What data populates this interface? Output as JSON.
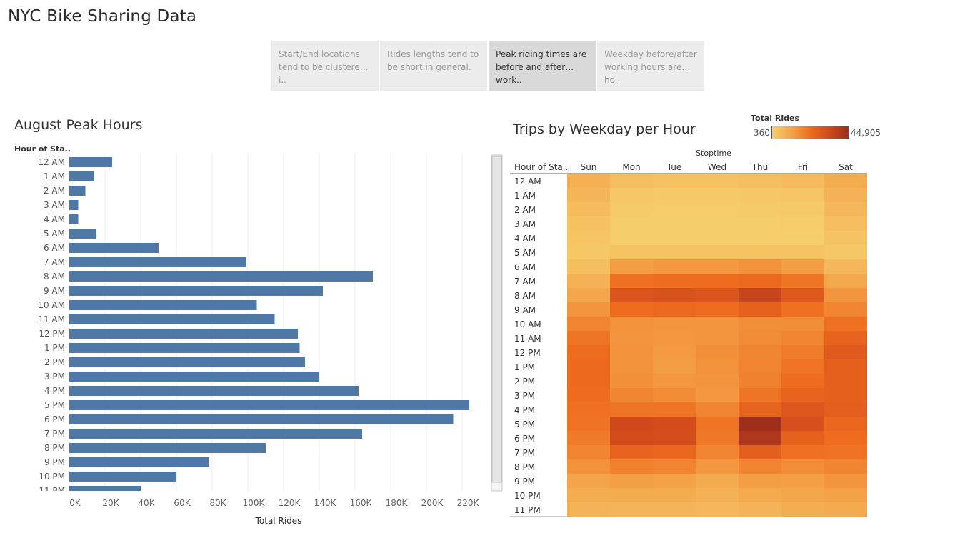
{
  "page": {
    "title": "NYC Bike Sharing Data"
  },
  "story_points": [
    {
      "label": "Start/End locations tend to be clustered i..",
      "active": false
    },
    {
      "label": "Rides lengths tend to be short in general.",
      "active": false
    },
    {
      "label": "Peak riding times are before and after work..",
      "active": true
    },
    {
      "label": "Weekday before/after working hours are ho..",
      "active": false
    }
  ],
  "colors": {
    "bar": "#4e79a7",
    "heat_scale": [
      "#f5cf6c",
      "#f4a44a",
      "#ee6d1e",
      "#d04a1c",
      "#9e2f1d"
    ]
  },
  "bar_sheet": {
    "title": "August Peak Hours",
    "row_header": "Hour of Sta.."
  },
  "heat_sheet": {
    "title": "Trips by Weekday per Hour",
    "column_header": "Stoptime",
    "row_header": "Hour of Sta.."
  },
  "legend": {
    "title": "Total Rides",
    "min_label": "360",
    "max_label": "44,905"
  },
  "chart_data": [
    {
      "type": "bar",
      "orientation": "horizontal",
      "title": "August Peak Hours",
      "xlabel": "Total Rides",
      "ylabel": "Hour of Sta..",
      "xlim": [
        0,
        230000
      ],
      "x_ticks": [
        "0K",
        "20K",
        "40K",
        "60K",
        "80K",
        "100K",
        "120K",
        "140K",
        "160K",
        "180K",
        "200K",
        "220K"
      ],
      "grid": true,
      "categories": [
        "12 AM",
        "1 AM",
        "2 AM",
        "3 AM",
        "4 AM",
        "5 AM",
        "6 AM",
        "7 AM",
        "8 AM",
        "9 AM",
        "10 AM",
        "11 AM",
        "12 PM",
        "1 PM",
        "2 PM",
        "3 PM",
        "4 PM",
        "5 PM",
        "6 PM",
        "7 PM",
        "8 PM",
        "9 PM",
        "10 PM",
        "11 PM"
      ],
      "values": [
        24000,
        14000,
        9000,
        5000,
        5000,
        15000,
        50000,
        99000,
        170000,
        142000,
        105000,
        115000,
        128000,
        129000,
        132000,
        140000,
        162000,
        224000,
        215000,
        164000,
        110000,
        78000,
        60000,
        40000
      ]
    },
    {
      "type": "heatmap",
      "title": "Trips by Weekday per Hour",
      "xlabel": "Stoptime",
      "ylabel": "Hour of Sta..",
      "color_label": "Total Rides",
      "color_range": [
        360,
        44905
      ],
      "columns": [
        "Sun",
        "Mon",
        "Tue",
        "Wed",
        "Thu",
        "Fri",
        "Sat"
      ],
      "rows": [
        "12 AM",
        "1 AM",
        "2 AM",
        "3 AM",
        "4 AM",
        "5 AM",
        "6 AM",
        "7 AM",
        "8 AM",
        "9 AM",
        "10 AM",
        "11 AM",
        "12 PM",
        "1 PM",
        "2 PM",
        "3 PM",
        "4 PM",
        "5 PM",
        "6 PM",
        "7 PM",
        "8 PM",
        "9 PM",
        "10 PM",
        "11 PM"
      ],
      "values": [
        [
          8500,
          4500,
          4000,
          4000,
          4500,
          5500,
          9500
        ],
        [
          7000,
          2500,
          2000,
          2000,
          2500,
          3000,
          8000
        ],
        [
          5500,
          1500,
          1200,
          1200,
          1500,
          2000,
          6500
        ],
        [
          4000,
          900,
          700,
          700,
          900,
          1200,
          5000
        ],
        [
          3000,
          700,
          600,
          600,
          700,
          900,
          3500
        ],
        [
          2500,
          3500,
          3500,
          3500,
          3500,
          3500,
          2500
        ],
        [
          4500,
          13000,
          14000,
          14000,
          15000,
          13000,
          6500
        ],
        [
          8000,
          22000,
          23000,
          23000,
          24000,
          21000,
          10500
        ],
        [
          11000,
          30000,
          31000,
          30000,
          36000,
          29000,
          14500
        ],
        [
          14500,
          23000,
          24000,
          23000,
          26000,
          22000,
          18000
        ],
        [
          18000,
          15000,
          14500,
          14500,
          16000,
          16000,
          22000
        ],
        [
          21000,
          14500,
          14000,
          14500,
          16500,
          17500,
          25500
        ],
        [
          23000,
          15000,
          13500,
          15500,
          17500,
          19500,
          28500
        ],
        [
          23500,
          15000,
          13000,
          15000,
          18000,
          21000,
          26500
        ],
        [
          23500,
          15500,
          14000,
          14500,
          18500,
          23000,
          26500
        ],
        [
          23000,
          17500,
          16500,
          14000,
          21000,
          25500,
          26500
        ],
        [
          22000,
          21000,
          21000,
          17500,
          25500,
          29500,
          27000
        ],
        [
          21500,
          34000,
          33000,
          21000,
          44905,
          32000,
          24500
        ],
        [
          20000,
          33000,
          32500,
          20500,
          41000,
          26000,
          23000
        ],
        [
          18000,
          25500,
          24500,
          18000,
          27000,
          22000,
          21500
        ],
        [
          15000,
          18500,
          17500,
          14000,
          18000,
          16000,
          17500
        ],
        [
          11500,
          12500,
          12000,
          10000,
          13000,
          12500,
          14500
        ],
        [
          9500,
          9500,
          9500,
          8000,
          10000,
          11000,
          12000
        ],
        [
          7500,
          7000,
          7000,
          6500,
          7500,
          9000,
          10000
        ]
      ]
    }
  ]
}
